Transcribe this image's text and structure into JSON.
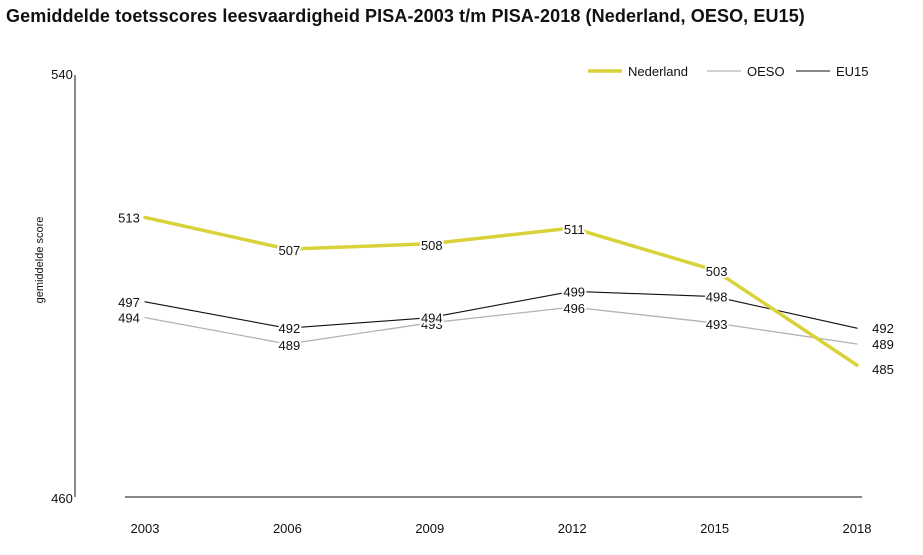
{
  "title": "Gemiddelde toetsscores leesvaardigheid PISA-2003 t/m PISA-2018 (Nederland, OESO, EU15)",
  "chart_data": {
    "type": "line",
    "title": "Gemiddelde toetsscores leesvaardigheid PISA-2003 t/m PISA-2018 (Nederland, OESO, EU15)",
    "xlabel": "",
    "ylabel": "gemiddelde score",
    "ylim": [
      460,
      540
    ],
    "yticks": [
      "540",
      "460"
    ],
    "categories": [
      "2003",
      "2006",
      "2009",
      "2012",
      "2015",
      "2018"
    ],
    "grid": false,
    "legend_position": "top-right",
    "series": [
      {
        "name": "Nederland",
        "color": "#d9d23a",
        "values": [
          513,
          507,
          508,
          511,
          503,
          485
        ],
        "labels": [
          "513",
          "507",
          "508",
          "511",
          "503",
          "485"
        ]
      },
      {
        "name": "OESO",
        "color": "#b3b3b3",
        "values": [
          494,
          489,
          493,
          496,
          493,
          489
        ],
        "labels": [
          "494",
          "489",
          "493",
          "496",
          "493",
          "489"
        ]
      },
      {
        "name": "EU15",
        "color": "#111111",
        "values": [
          497,
          492,
          494,
          499,
          498,
          492
        ],
        "labels": [
          "497",
          "492",
          "494",
          "499",
          "498",
          "492"
        ]
      }
    ]
  }
}
